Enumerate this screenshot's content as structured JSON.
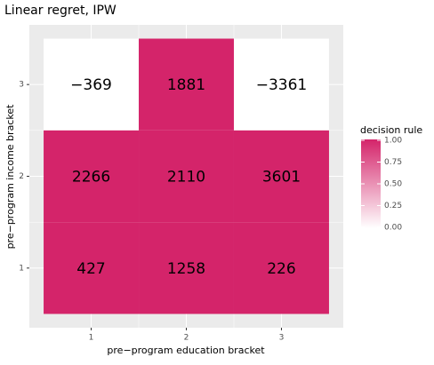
{
  "chart_data": {
    "type": "heatmap",
    "title": "Linear regret, IPW",
    "x_label": "pre−program education bracket",
    "y_label": "pre−program income bracket",
    "x": [
      1,
      2,
      3,
      1,
      2,
      3,
      1,
      2,
      3
    ],
    "y": [
      3,
      3,
      3,
      2,
      2,
      2,
      1,
      1,
      1
    ],
    "values": [
      -369,
      1881,
      -3361,
      2266,
      2110,
      3601,
      427,
      1258,
      226
    ],
    "value_labels": [
      "−369",
      "1881",
      "−3361",
      "2266",
      "2110",
      "3601",
      "427",
      "1258",
      "226"
    ],
    "fill": [
      0,
      1,
      0,
      1,
      1,
      1,
      1,
      1,
      1
    ],
    "xlim": [
      0.35,
      3.65
    ],
    "ylim": [
      0.35,
      3.65
    ],
    "xticks": [
      1,
      2,
      3
    ],
    "yticks": [
      1,
      2,
      3
    ],
    "grid": true,
    "legend": {
      "title": "decision rule",
      "position": "right",
      "low_color": "#ffffff",
      "high_color": "#d4246a",
      "lim": [
        0,
        1
      ],
      "ticks": [
        {
          "value": 0,
          "label": "0.00"
        },
        {
          "value": 0.25,
          "label": "0.25"
        },
        {
          "value": 0.5,
          "label": "0.50"
        },
        {
          "value": 0.75,
          "label": "0.75"
        },
        {
          "value": 1,
          "label": "1.00"
        }
      ]
    }
  }
}
